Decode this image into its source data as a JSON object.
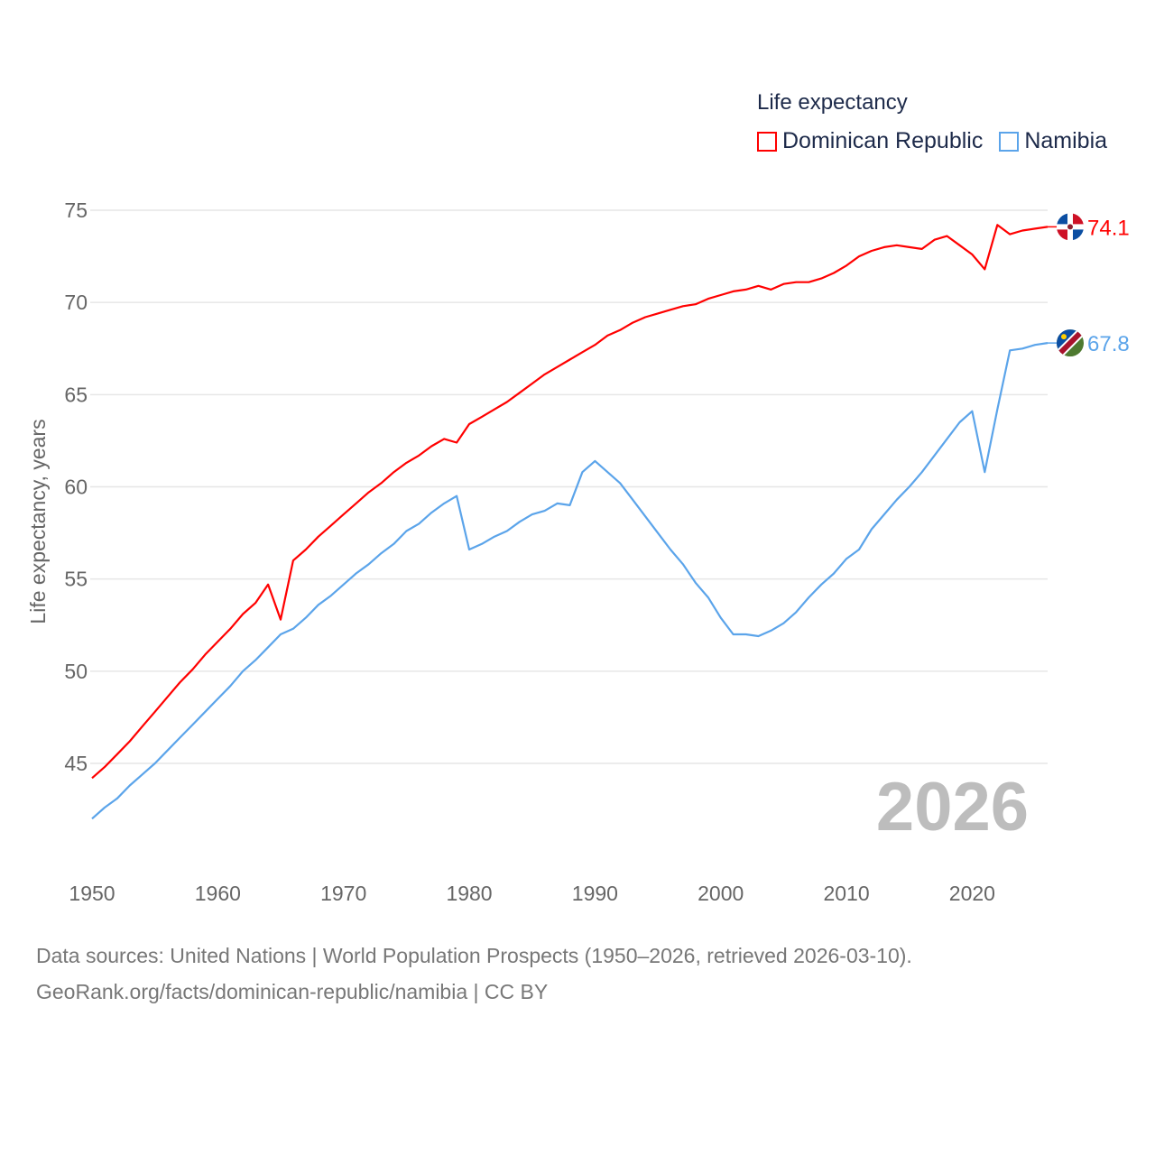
{
  "chart_data": {
    "type": "line",
    "title": "Life expectancy",
    "xlabel": "",
    "ylabel": "Life expectancy, years",
    "xlim": [
      1950,
      2026
    ],
    "ylim": [
      41,
      75
    ],
    "x_ticks": [
      "1950",
      "1960",
      "1970",
      "1980",
      "1990",
      "2000",
      "2010",
      "2020"
    ],
    "y_ticks": [
      "75",
      "70",
      "65",
      "60",
      "55",
      "50",
      "45"
    ],
    "grid": true,
    "legend_placement": "top-right",
    "watermark_year": "2026",
    "series": [
      {
        "name": "Dominican Republic",
        "color": "#ff0000",
        "end_label": "74.1",
        "start_year": 1950,
        "values": [
          44.2,
          44.8,
          45.5,
          46.2,
          47.0,
          47.8,
          48.6,
          49.4,
          50.1,
          50.9,
          51.6,
          52.3,
          53.1,
          53.7,
          54.7,
          52.8,
          56.0,
          56.6,
          57.3,
          57.9,
          58.5,
          59.1,
          59.7,
          60.2,
          60.8,
          61.3,
          61.7,
          62.2,
          62.6,
          62.4,
          63.4,
          63.8,
          64.2,
          64.6,
          65.1,
          65.6,
          66.1,
          66.5,
          66.9,
          67.3,
          67.7,
          68.2,
          68.5,
          68.9,
          69.2,
          69.4,
          69.6,
          69.8,
          69.9,
          70.2,
          70.4,
          70.6,
          70.7,
          70.9,
          70.7,
          71.0,
          71.1,
          71.1,
          71.3,
          71.6,
          72.0,
          72.5,
          72.8,
          73.0,
          73.1,
          73.0,
          72.9,
          73.4,
          73.6,
          73.1,
          72.6,
          71.8,
          74.2,
          73.7,
          73.9,
          74.0,
          74.1
        ]
      },
      {
        "name": "Namibia",
        "color": "#5ba4ea",
        "end_label": "67.8",
        "start_year": 1950,
        "values": [
          42.0,
          42.6,
          43.1,
          43.8,
          44.4,
          45.0,
          45.7,
          46.4,
          47.1,
          47.8,
          48.5,
          49.2,
          50.0,
          50.6,
          51.3,
          52.0,
          52.3,
          52.9,
          53.6,
          54.1,
          54.7,
          55.3,
          55.8,
          56.4,
          56.9,
          57.6,
          58.0,
          58.6,
          59.1,
          59.5,
          56.6,
          56.9,
          57.3,
          57.6,
          58.1,
          58.5,
          58.7,
          59.1,
          59.0,
          60.8,
          61.4,
          60.8,
          60.2,
          59.3,
          58.4,
          57.5,
          56.6,
          55.8,
          54.8,
          54.0,
          52.9,
          52.0,
          52.0,
          51.9,
          52.2,
          52.6,
          53.2,
          54.0,
          54.7,
          55.3,
          56.1,
          56.6,
          57.7,
          58.5,
          59.3,
          60.0,
          60.8,
          61.7,
          62.6,
          63.5,
          64.1,
          60.8,
          64.2,
          67.4,
          67.5,
          67.7,
          67.8
        ]
      }
    ]
  },
  "footer": {
    "line1": "Data sources: United Nations | World Population Prospects (1950–2026, retrieved 2026-03-10).",
    "line2": "GeoRank.org/facts/dominican-republic/namibia | CC BY"
  }
}
